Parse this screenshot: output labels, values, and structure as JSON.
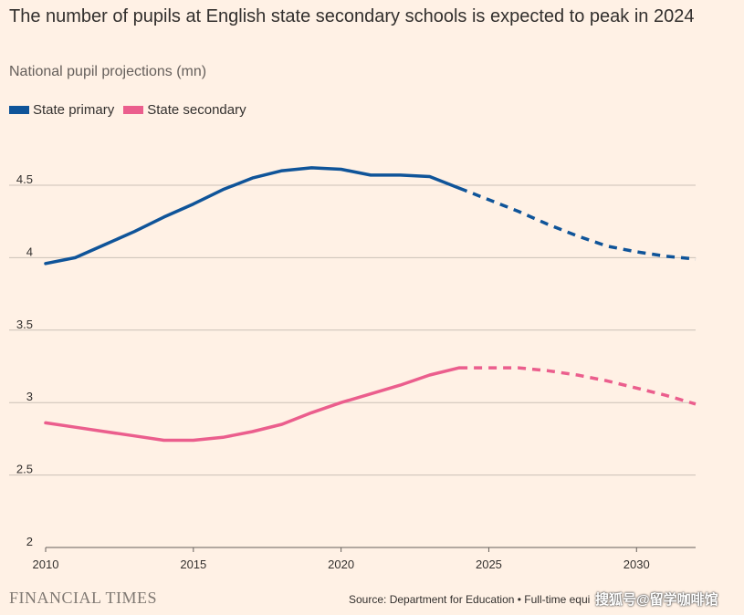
{
  "title": "The number of pupils at English state secondary schools is expected to peak in 2024",
  "subtitle": "National pupil projections (mn)",
  "footer": {
    "brand": "FINANCIAL TIMES",
    "source": "Source: Department for Education • Full-time equi",
    "watermark": "搜狐号@留学咖啡馆"
  },
  "colors": {
    "primary": "#0f5499",
    "secondary": "#eb5e8d",
    "grid": "#ccc1b7",
    "background": "#fff1e5"
  },
  "chart_data": {
    "type": "line",
    "xlim": [
      2010,
      2032
    ],
    "ylim": [
      2,
      4.75
    ],
    "yticks": [
      "2",
      "2.5",
      "3",
      "3.5",
      "4",
      "4.5"
    ],
    "yticks_values": [
      2,
      2.5,
      3,
      3.5,
      4,
      4.5
    ],
    "xticks": [
      "2010",
      "2015",
      "2020",
      "2025",
      "2030"
    ],
    "xticks_values": [
      2010,
      2015,
      2020,
      2025,
      2030
    ],
    "grid": "horizontal",
    "legend_placement": "top-left",
    "projection_start": 2024,
    "series": [
      {
        "name": "State primary",
        "color": "#0f5499",
        "x": [
          2010,
          2011,
          2012,
          2013,
          2014,
          2015,
          2016,
          2017,
          2018,
          2019,
          2020,
          2021,
          2022,
          2023,
          2024,
          2025,
          2026,
          2027,
          2028,
          2029,
          2030,
          2031,
          2032
        ],
        "y": [
          3.96,
          4.0,
          4.09,
          4.18,
          4.28,
          4.37,
          4.47,
          4.55,
          4.6,
          4.62,
          4.61,
          4.57,
          4.57,
          4.56,
          4.48,
          4.4,
          4.32,
          4.23,
          4.15,
          4.08,
          4.04,
          4.01,
          3.99
        ]
      },
      {
        "name": "State secondary",
        "color": "#eb5e8d",
        "x": [
          2010,
          2011,
          2012,
          2013,
          2014,
          2015,
          2016,
          2017,
          2018,
          2019,
          2020,
          2021,
          2022,
          2023,
          2024,
          2025,
          2026,
          2027,
          2028,
          2029,
          2030,
          2031,
          2032
        ],
        "y": [
          2.86,
          2.83,
          2.8,
          2.77,
          2.74,
          2.74,
          2.76,
          2.8,
          2.85,
          2.93,
          3.0,
          3.06,
          3.12,
          3.19,
          3.24,
          3.24,
          3.24,
          3.22,
          3.19,
          3.15,
          3.1,
          3.05,
          2.99
        ]
      }
    ]
  }
}
